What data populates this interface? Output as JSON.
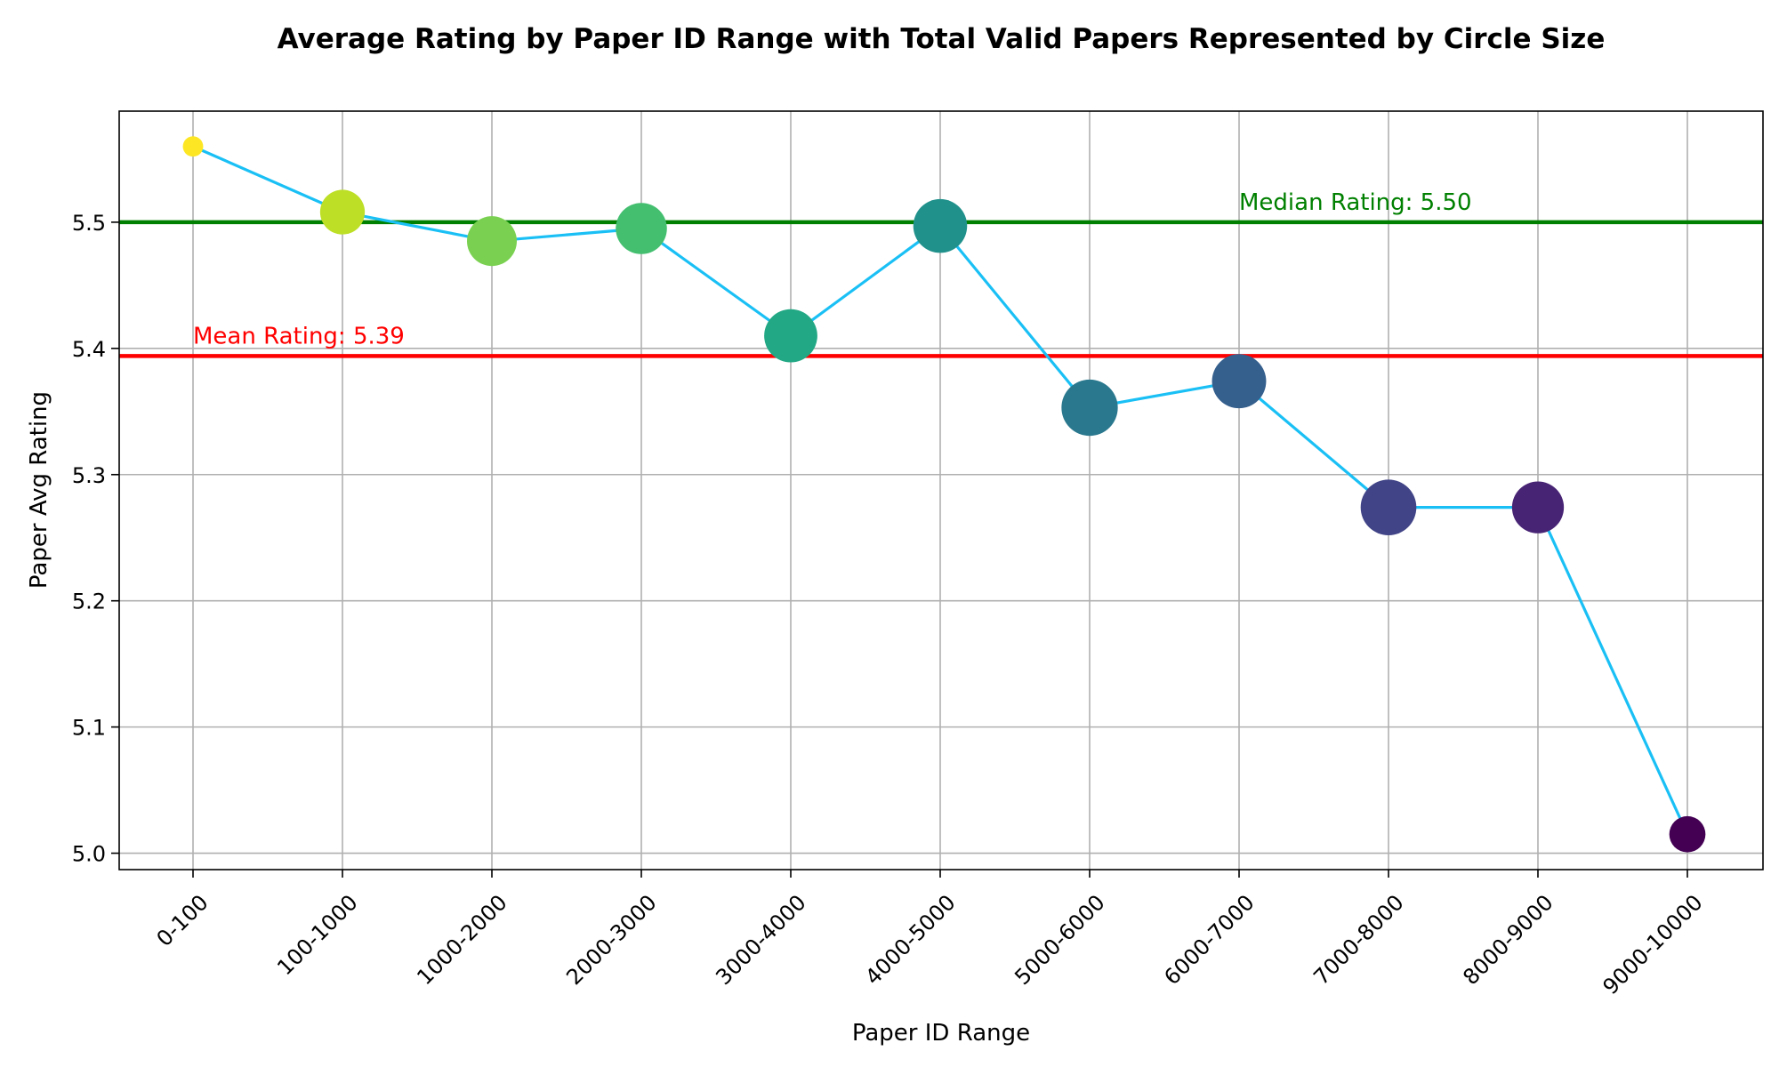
{
  "chart_data": {
    "type": "scatter",
    "title": "Average Rating by Paper ID Range with Total Valid Papers Represented by Circle Size",
    "xlabel": "Paper ID Range",
    "ylabel": "Paper Avg Rating",
    "categories": [
      "0-100",
      "100-1000",
      "1000-2000",
      "2000-3000",
      "3000-4000",
      "4000-5000",
      "5000-6000",
      "6000-7000",
      "7000-8000",
      "8000-9000",
      "9000-10000"
    ],
    "values": [
      5.56,
      5.508,
      5.485,
      5.495,
      5.41,
      5.497,
      5.353,
      5.374,
      5.274,
      5.274,
      5.015
    ],
    "relative_sizes": [
      0.12,
      0.58,
      0.72,
      0.76,
      0.82,
      0.84,
      0.92,
      0.85,
      0.9,
      0.78,
      0.38
    ],
    "colors": [
      "#fde725",
      "#bddf26",
      "#7ad151",
      "#44bf70",
      "#22a884",
      "#21918c",
      "#2a788e",
      "#355f8d",
      "#414487",
      "#482475",
      "#440154"
    ],
    "ylim": [
      4.987,
      5.588
    ],
    "yticks": [
      "5.0",
      "5.1",
      "5.2",
      "5.3",
      "5.4",
      "5.5"
    ],
    "ytick_values": [
      5.0,
      5.1,
      5.2,
      5.3,
      5.4,
      5.5
    ],
    "grid": true,
    "line_color": "#1ac0f5",
    "reference_lines": [
      {
        "label": "Mean Rating: 5.39",
        "value": 5.394,
        "color": "#ff0000"
      },
      {
        "label": "Median Rating: 5.50",
        "value": 5.5,
        "color": "#008000"
      }
    ]
  }
}
